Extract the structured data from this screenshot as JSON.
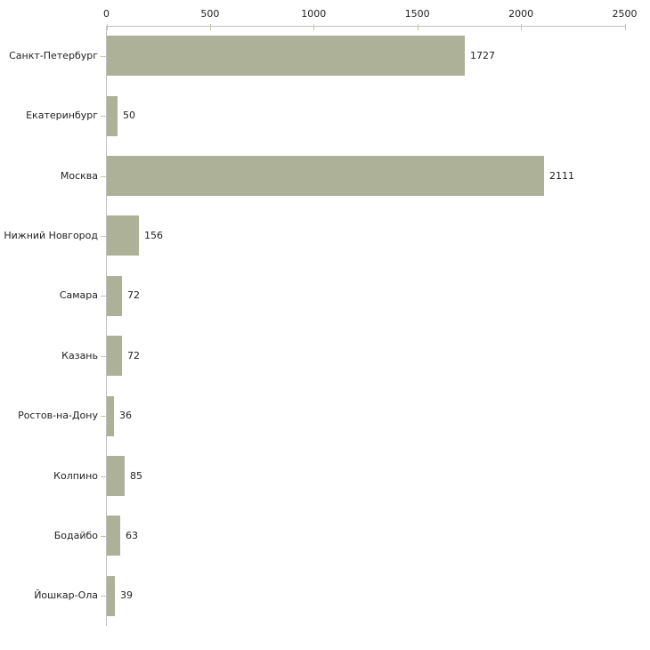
{
  "chart_data": {
    "type": "bar",
    "orientation": "horizontal",
    "title": "",
    "xlabel": "",
    "ylabel": "",
    "categories": [
      "Санкт-Петербург",
      "Екатеринбург",
      "Москва",
      "Нижний Новгород",
      "Самара",
      "Казань",
      "Ростов-на-Дону",
      "Колпино",
      "Бодайбо",
      "Йошкар-Ола"
    ],
    "values": [
      1727,
      50,
      2111,
      156,
      72,
      72,
      36,
      85,
      63,
      39
    ],
    "value_labels": [
      "1727",
      "50",
      "2111",
      "156",
      "72",
      "72",
      "36",
      "85",
      "63",
      "39"
    ],
    "x_axis": {
      "position": "top",
      "ticks": [
        0,
        500,
        1000,
        1500,
        2000,
        2500
      ],
      "tick_labels": [
        "0",
        "500",
        "1000",
        "1500",
        "2000",
        "2500"
      ],
      "min": 0,
      "max": 2500
    },
    "grid": false,
    "legend": false,
    "colors": {
      "bar": "#acb197",
      "axis_line": "#c0c0c0",
      "tick_mark": "#c9c6a2",
      "text": "#222222",
      "background": "#ffffff"
    }
  }
}
